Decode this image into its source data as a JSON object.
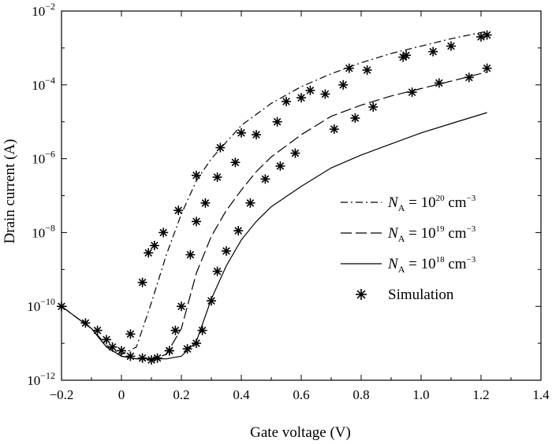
{
  "chart_data": {
    "type": "line",
    "title": "",
    "xlabel": "Gate voltage (V)",
    "ylabel": "Drain current (A)",
    "xlim": [
      -0.2,
      1.4
    ],
    "ylim_log10": [
      -12,
      -2
    ],
    "y_scale": "log",
    "x_ticks": [
      "−0.2",
      "0",
      "0.2",
      "0.4",
      "0.6",
      "0.8",
      "1.0",
      "1.2",
      "1.4"
    ],
    "x_tick_values": [
      -0.2,
      0,
      0.2,
      0.4,
      0.6,
      0.8,
      1.0,
      1.2,
      1.4
    ],
    "y_ticks": [
      {
        "base": "10",
        "exp": "−2",
        "value": -2
      },
      {
        "base": "10",
        "exp": "−4",
        "value": -4
      },
      {
        "base": "10",
        "exp": "−6",
        "value": -6
      },
      {
        "base": "10",
        "exp": "−8",
        "value": -8
      },
      {
        "base": "10",
        "exp": "−10",
        "value": -10
      },
      {
        "base": "10",
        "exp": "−12",
        "value": -12
      }
    ],
    "legend_position": "right",
    "series": [
      {
        "name": "NA = 10^20 cm^-3",
        "style": "dash-dot",
        "x": [
          -0.2,
          -0.1,
          -0.05,
          0.0,
          0.05,
          0.1,
          0.15,
          0.2,
          0.25,
          0.3,
          0.35,
          0.4,
          0.5,
          0.6,
          0.7,
          0.8,
          0.9,
          1.0,
          1.1,
          1.22
        ],
        "log10_y": [
          -10.0,
          -10.6,
          -11.05,
          -11.3,
          -11.1,
          -9.9,
          -8.6,
          -7.5,
          -6.6,
          -6.0,
          -5.55,
          -5.1,
          -4.5,
          -4.05,
          -3.7,
          -3.4,
          -3.15,
          -2.95,
          -2.75,
          -2.55
        ]
      },
      {
        "name": "NA = 10^19 cm^-3",
        "style": "dashed",
        "x": [
          -0.2,
          -0.1,
          -0.05,
          0.0,
          0.05,
          0.1,
          0.15,
          0.2,
          0.25,
          0.3,
          0.35,
          0.4,
          0.45,
          0.5,
          0.6,
          0.7,
          0.8,
          0.9,
          1.0,
          1.1,
          1.22
        ],
        "log10_y": [
          -10.0,
          -10.6,
          -11.1,
          -11.35,
          -11.42,
          -11.42,
          -11.3,
          -10.6,
          -9.1,
          -8.1,
          -7.4,
          -6.85,
          -6.35,
          -5.95,
          -5.35,
          -4.85,
          -4.55,
          -4.3,
          -4.1,
          -3.9,
          -3.65
        ]
      },
      {
        "name": "NA = 10^18 cm^-3",
        "style": "solid",
        "x": [
          -0.2,
          -0.1,
          -0.05,
          0.0,
          0.05,
          0.1,
          0.15,
          0.2,
          0.25,
          0.3,
          0.35,
          0.4,
          0.45,
          0.5,
          0.6,
          0.7,
          0.8,
          0.9,
          1.0,
          1.1,
          1.22
        ],
        "log10_y": [
          -10.0,
          -10.6,
          -11.1,
          -11.35,
          -11.42,
          -11.42,
          -11.42,
          -11.35,
          -10.95,
          -9.8,
          -8.9,
          -8.2,
          -7.7,
          -7.3,
          -6.75,
          -6.25,
          -5.9,
          -5.6,
          -5.3,
          -5.05,
          -4.75
        ]
      },
      {
        "name": "Simulation",
        "style": "markers",
        "points": [
          [
            -0.2,
            -10.0
          ],
          [
            -0.12,
            -10.45
          ],
          [
            -0.08,
            -10.65
          ],
          [
            -0.05,
            -10.9
          ],
          [
            -0.03,
            -11.1
          ],
          [
            0.0,
            -11.2
          ],
          [
            0.03,
            -11.35
          ],
          [
            0.07,
            -11.4
          ],
          [
            0.1,
            -11.45
          ],
          [
            0.12,
            -11.4
          ],
          [
            0.03,
            -10.75
          ],
          [
            0.07,
            -9.35
          ],
          [
            0.09,
            -8.55
          ],
          [
            0.11,
            -8.35
          ],
          [
            0.14,
            -8.0
          ],
          [
            0.19,
            -7.4
          ],
          [
            0.25,
            -6.45
          ],
          [
            0.33,
            -5.7
          ],
          [
            0.4,
            -5.3
          ],
          [
            0.55,
            -4.45
          ],
          [
            0.63,
            -4.15
          ],
          [
            0.76,
            -3.55
          ],
          [
            0.94,
            -3.25
          ],
          [
            1.1,
            -2.95
          ],
          [
            1.22,
            -2.65
          ],
          [
            0.16,
            -11.2
          ],
          [
            0.18,
            -10.65
          ],
          [
            0.2,
            -10.0
          ],
          [
            0.23,
            -8.6
          ],
          [
            0.25,
            -7.7
          ],
          [
            0.28,
            -7.2
          ],
          [
            0.32,
            -6.5
          ],
          [
            0.38,
            -6.1
          ],
          [
            0.45,
            -5.35
          ],
          [
            0.52,
            -5.0
          ],
          [
            0.6,
            -4.35
          ],
          [
            0.68,
            -4.25
          ],
          [
            0.74,
            -4.0
          ],
          [
            0.82,
            -3.6
          ],
          [
            0.95,
            -3.2
          ],
          [
            1.04,
            -3.1
          ],
          [
            1.2,
            -2.7
          ],
          [
            0.16,
            -11.2
          ],
          [
            0.22,
            -11.15
          ],
          [
            0.25,
            -11.0
          ],
          [
            0.27,
            -10.65
          ],
          [
            0.3,
            -9.85
          ],
          [
            0.32,
            -9.05
          ],
          [
            0.35,
            -8.5
          ],
          [
            0.39,
            -7.95
          ],
          [
            0.43,
            -7.2
          ],
          [
            0.48,
            -6.55
          ],
          [
            0.53,
            -6.2
          ],
          [
            0.58,
            -5.85
          ],
          [
            0.71,
            -5.2
          ],
          [
            0.78,
            -4.9
          ],
          [
            0.84,
            -4.6
          ],
          [
            0.97,
            -4.2
          ],
          [
            1.06,
            -3.95
          ],
          [
            1.16,
            -3.8
          ],
          [
            1.22,
            -3.55
          ]
        ]
      }
    ]
  },
  "legend": [
    {
      "prefix": "N",
      "sub": "A",
      "mid": " = 10",
      "sup": "20",
      "suffix": " cm",
      "unit_sup": "−3"
    },
    {
      "prefix": "N",
      "sub": "A",
      "mid": " = 10",
      "sup": "19",
      "suffix": " cm",
      "unit_sup": "−3"
    },
    {
      "prefix": "N",
      "sub": "A",
      "mid": " = 10",
      "sup": "18",
      "suffix": " cm",
      "unit_sup": "−3"
    },
    {
      "label": "Simulation"
    }
  ]
}
